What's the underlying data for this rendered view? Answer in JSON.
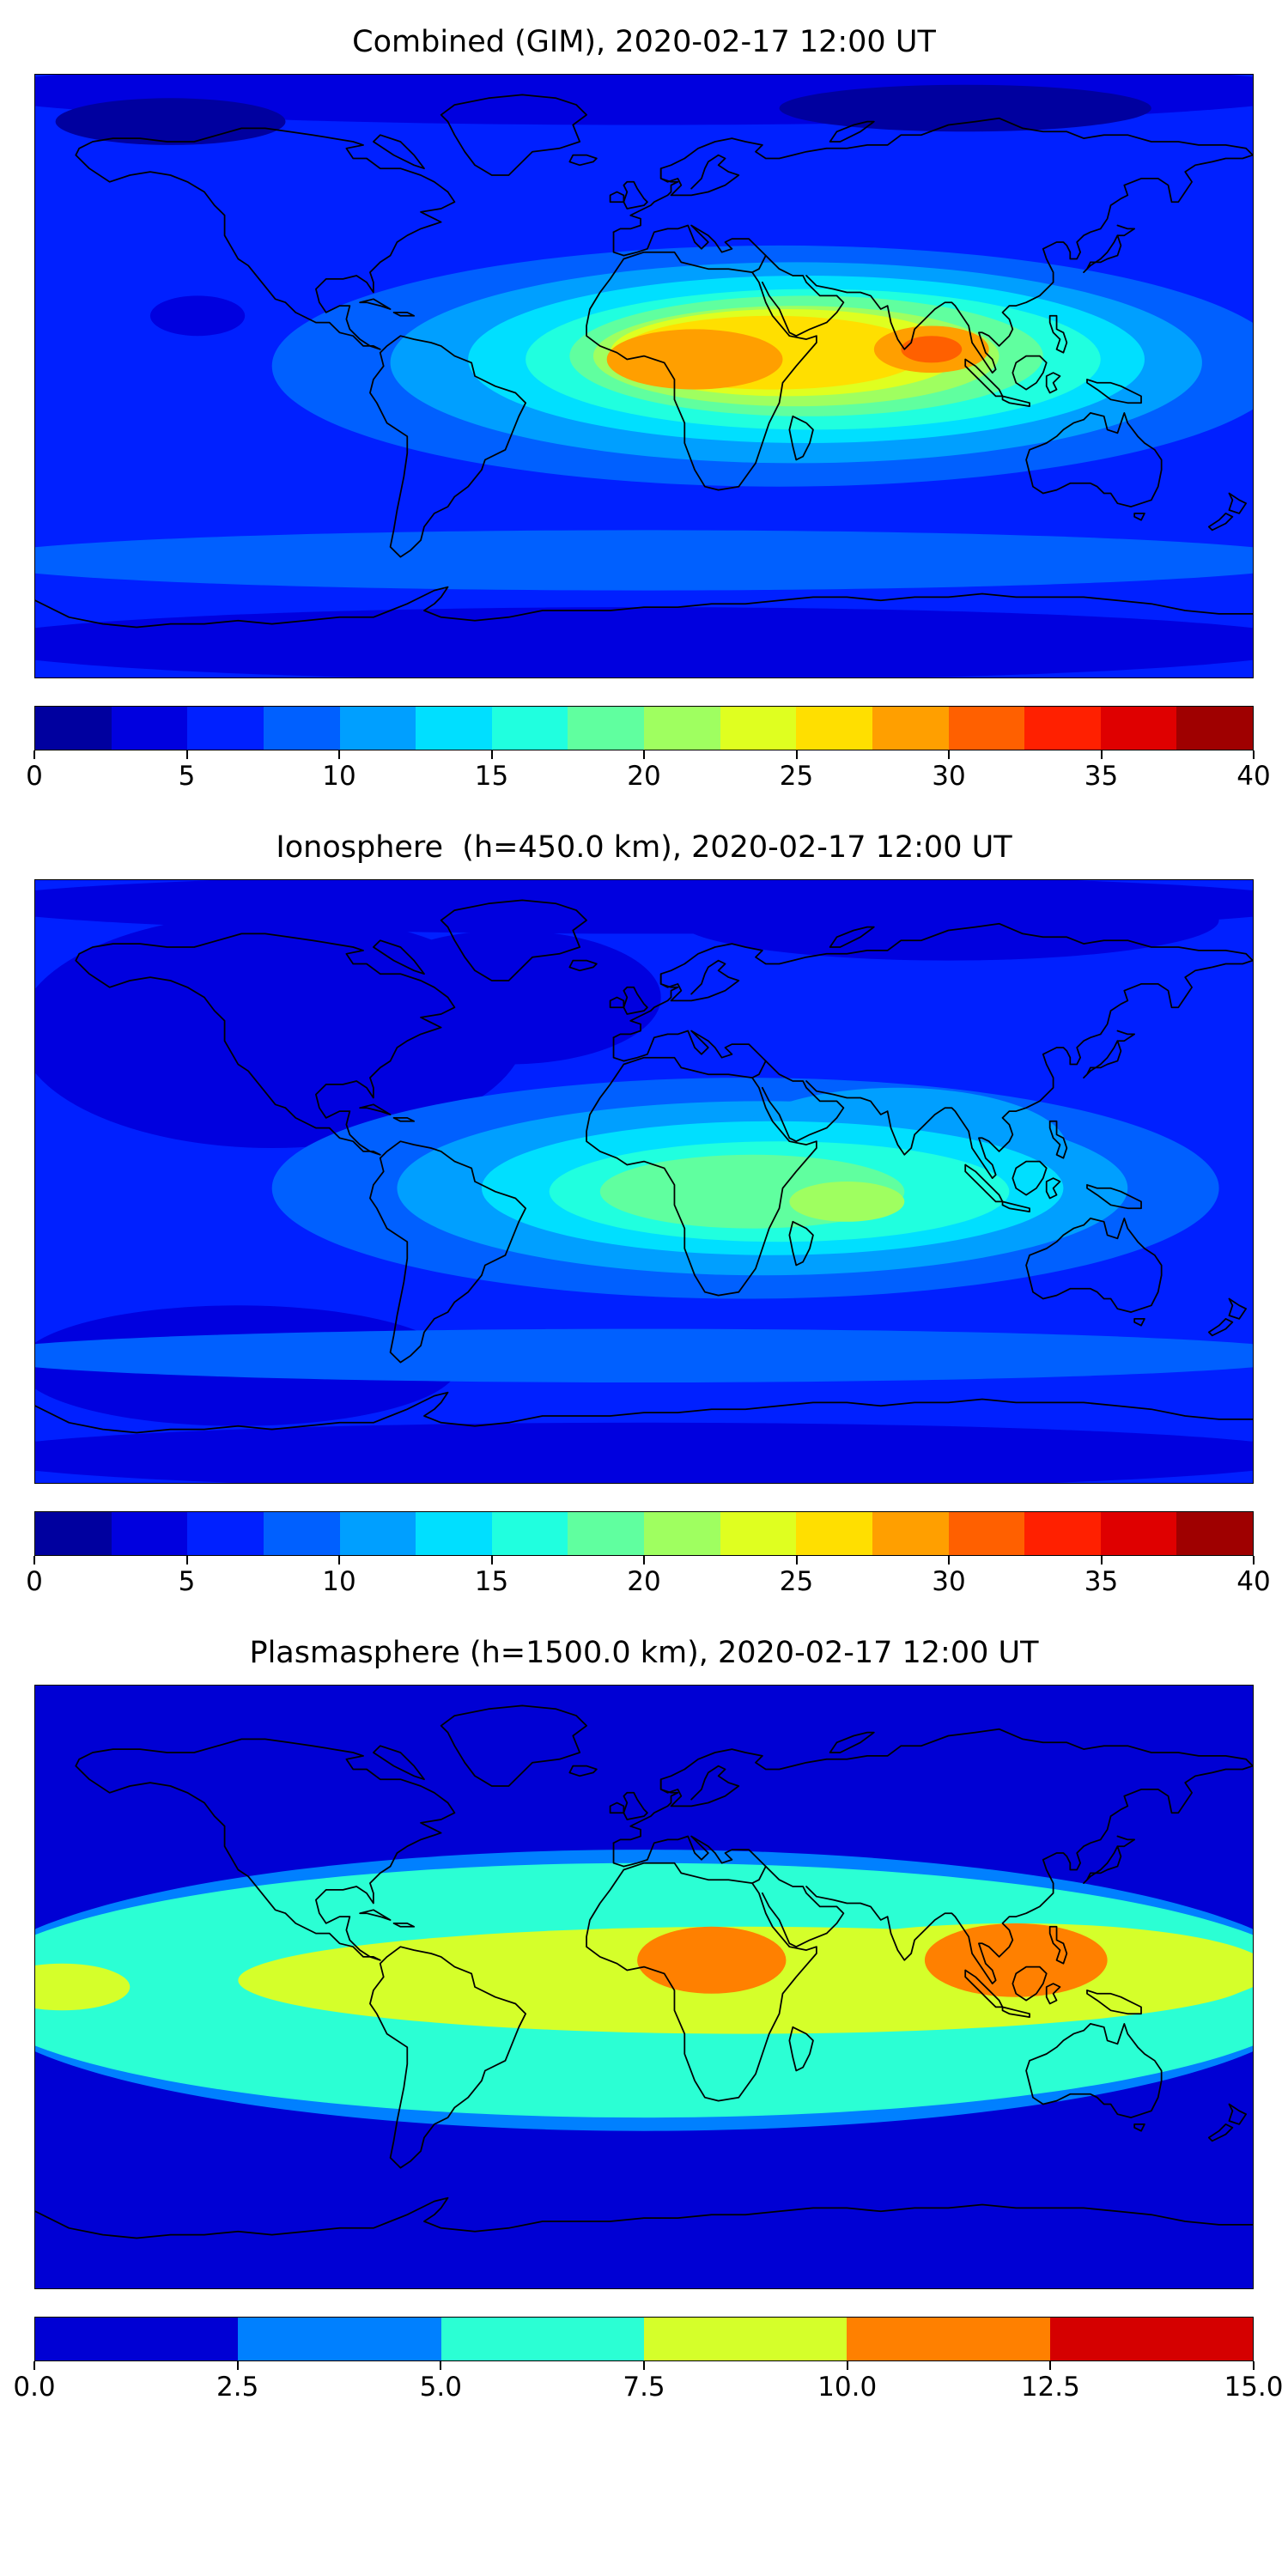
{
  "page": {
    "background": "#ffffff"
  },
  "chart_data": [
    {
      "id": "combined",
      "type": "heatmap",
      "title": "Combined (GIM), 2020-02-17 12:00 UT",
      "projection": "equirectangular world map with coastlines",
      "lon_range": [
        -180,
        180
      ],
      "lat_range": [
        -90,
        90
      ],
      "colormap": "jet",
      "levels": {
        "min": 0,
        "max": 40,
        "step": 2.5
      },
      "tick_values": [
        0,
        5,
        10,
        15,
        20,
        25,
        30,
        35,
        40
      ],
      "colorbar_ticks": [
        "0",
        "5",
        "10",
        "15",
        "20",
        "25",
        "30",
        "35",
        "40"
      ],
      "legend_position": "bottom horizontal colorbar",
      "grid": false,
      "field": {
        "base": 6,
        "blobs": [
          [
            0,
            85,
            200,
            10,
            4
          ],
          [
            -140,
            76,
            34,
            7,
            1
          ],
          [
            95,
            80,
            55,
            7,
            1
          ],
          [
            0,
            -80,
            200,
            11,
            4
          ],
          [
            0,
            -55,
            200,
            9,
            9
          ],
          [
            -132,
            18,
            14,
            6,
            4
          ],
          [
            40,
            3,
            150,
            36,
            9
          ],
          [
            45,
            4,
            120,
            30,
            11
          ],
          [
            48,
            5,
            100,
            25,
            14
          ],
          [
            50,
            5,
            85,
            21,
            16
          ],
          [
            48,
            6,
            70,
            18,
            19
          ],
          [
            45,
            6,
            60,
            15,
            21
          ],
          [
            42,
            7,
            52,
            13,
            24
          ],
          [
            38,
            7,
            45,
            11,
            26
          ],
          [
            15,
            5,
            26,
            9,
            29
          ],
          [
            85,
            8,
            17,
            7,
            29
          ],
          [
            85,
            8,
            9,
            4,
            31
          ]
        ]
      }
    },
    {
      "id": "ionosphere",
      "type": "heatmap",
      "title": "Ionosphere  (h=450.0 km), 2020-02-17 12:00 UT",
      "projection": "equirectangular world map with coastlines",
      "lon_range": [
        -180,
        180
      ],
      "lat_range": [
        -90,
        90
      ],
      "colormap": "jet",
      "levels": {
        "min": 0,
        "max": 40,
        "step": 2.5
      },
      "tick_values": [
        0,
        5,
        10,
        15,
        20,
        25,
        30,
        35,
        40
      ],
      "colorbar_ticks": [
        "0",
        "5",
        "10",
        "15",
        "20",
        "25",
        "30",
        "35",
        "40"
      ],
      "legend_position": "bottom horizontal colorbar",
      "grid": false,
      "field": {
        "base": 6,
        "blobs": [
          [
            0,
            83,
            200,
            9,
            3
          ],
          [
            90,
            78,
            80,
            12,
            3
          ],
          [
            -110,
            45,
            75,
            35,
            3
          ],
          [
            -40,
            55,
            45,
            20,
            3
          ],
          [
            -120,
            -55,
            65,
            18,
            3
          ],
          [
            0,
            -82,
            200,
            10,
            4
          ],
          [
            0,
            -52,
            200,
            8,
            9
          ],
          [
            30,
            -2,
            140,
            33,
            9
          ],
          [
            95,
            2,
            55,
            15,
            9
          ],
          [
            35,
            -2,
            108,
            26,
            11
          ],
          [
            75,
            10,
            50,
            18,
            11
          ],
          [
            38,
            -2,
            86,
            20,
            14
          ],
          [
            40,
            -3,
            68,
            15,
            16
          ],
          [
            32,
            -3,
            45,
            11,
            19
          ],
          [
            60,
            -6,
            17,
            6,
            22
          ]
        ]
      }
    },
    {
      "id": "plasmasphere",
      "type": "heatmap",
      "title": "Plasmasphere (h=1500.0 km), 2020-02-17 12:00 UT",
      "projection": "equirectangular world map with coastlines",
      "lon_range": [
        -180,
        180
      ],
      "lat_range": [
        -90,
        90
      ],
      "colormap": "jet",
      "levels": {
        "min": 0,
        "max": 15,
        "step": 2.5
      },
      "tick_values": [
        0,
        2.5,
        5,
        7.5,
        10,
        12.5,
        15
      ],
      "colorbar_ticks": [
        "0.0",
        "2.5",
        "5.0",
        "7.5",
        "10.0",
        "12.5",
        "15.0"
      ],
      "legend_position": "bottom horizontal colorbar",
      "grid": false,
      "field": {
        "base": 1.2,
        "blobs": [
          [
            0,
            -1,
            200,
            42,
            3.7
          ],
          [
            0,
            -1,
            200,
            38,
            6
          ],
          [
            30,
            2,
            150,
            16,
            8.8
          ],
          [
            110,
            5,
            75,
            14,
            8.8
          ],
          [
            -172,
            0,
            20,
            7,
            8.8
          ],
          [
            20,
            8,
            22,
            10,
            11.2
          ],
          [
            110,
            8,
            27,
            11,
            11.2
          ]
        ]
      }
    }
  ]
}
